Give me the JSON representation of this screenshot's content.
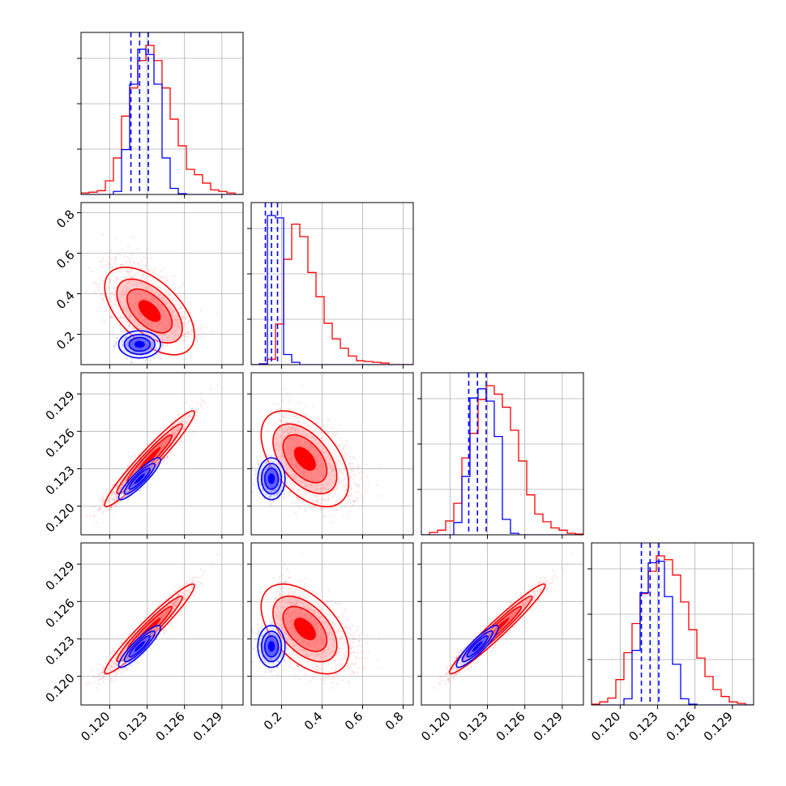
{
  "chart_data": {
    "type": "corner",
    "title": "",
    "colors": {
      "series_a": "#ff0000",
      "series_b": "#0000ff"
    },
    "grid": true,
    "parameters": [
      {
        "index": 0,
        "range": [
          0.1177,
          0.1307
        ],
        "ticks": [
          0.12,
          0.123,
          0.126,
          0.129
        ],
        "tick_labels": [
          "0.120",
          "0.123",
          "0.126",
          "0.129"
        ]
      },
      {
        "index": 1,
        "range": [
          0.05,
          0.85
        ],
        "ticks": [
          0.2,
          0.4,
          0.6,
          0.8
        ],
        "tick_labels": [
          "0.2",
          "0.4",
          "0.6",
          "0.8"
        ]
      },
      {
        "index": 2,
        "range": [
          0.1177,
          0.1307
        ],
        "ticks": [
          0.12,
          0.123,
          0.126,
          0.129
        ],
        "tick_labels": [
          "0.120",
          "0.123",
          "0.126",
          "0.129"
        ]
      },
      {
        "index": 3,
        "range": [
          0.1177,
          0.1307
        ],
        "ticks": [
          0.12,
          0.123,
          0.126,
          0.129
        ],
        "tick_labels": [
          "0.120",
          "0.123",
          "0.126",
          "0.129"
        ]
      }
    ],
    "series": [
      {
        "color": "#ff0000",
        "means": [
          0.1232,
          0.315,
          0.1238,
          0.1238
        ],
        "stds": [
          0.0015,
          0.09,
          0.0016,
          0.0015
        ],
        "correlations": {
          "1-0": -0.55,
          "2-0": 0.96,
          "2-1": -0.5,
          "3-0": 0.96,
          "3-1": -0.5,
          "3-2": 0.97
        },
        "histograms": [
          {
            "edges_start": 0.1177,
            "bin_width": 0.00065,
            "values": [
              0.2,
              0.3,
              0.5,
              1.8,
              4.8,
              10.3,
              14.0,
              17.6,
              19.6,
              17.6,
              14.0,
              9.9,
              6.4,
              3.3,
              2.6,
              1.5,
              0.6,
              0.4,
              0.2,
              0.0
            ]
          },
          {
            "edges_start": 0.05,
            "bin_width": 0.04,
            "values": [
              0.0,
              0.1,
              0.7,
              5.2,
              13.5,
              18.0,
              16.4,
              11.8,
              8.7,
              5.3,
              3.3,
              2.1,
              1.1,
              0.5,
              0.4,
              0.3,
              0.2,
              0.0,
              0.0,
              0.0
            ]
          },
          {
            "edges_start": 0.1177,
            "bin_width": 0.00065,
            "values": [
              0.0,
              0.3,
              0.6,
              1.8,
              4.1,
              10.0,
              13.2,
              17.6,
              19.4,
              18.3,
              16.6,
              13.6,
              9.6,
              5.2,
              2.7,
              1.7,
              0.9,
              0.6,
              0.2,
              0.1
            ]
          },
          {
            "edges_start": 0.1177,
            "bin_width": 0.00065,
            "values": [
              0.1,
              0.4,
              0.9,
              3.3,
              6.8,
              10.6,
              14.5,
              17.4,
              19.4,
              18.9,
              16.9,
              13.4,
              9.8,
              6.1,
              3.7,
              2.0,
              1.1,
              0.4,
              0.2,
              0.0
            ]
          }
        ]
      },
      {
        "color": "#0000ff",
        "means": [
          0.1224,
          0.15,
          0.1222,
          0.1224
        ],
        "stds": [
          0.0007,
          0.028,
          0.0007,
          0.0007
        ],
        "correlations": {
          "1-0": 0.0,
          "2-0": 0.9,
          "2-1": 0.0,
          "3-0": 0.9,
          "3-1": 0.0,
          "3-2": 0.9
        },
        "histograms": [
          {
            "edges_start": 0.1177,
            "bin_width": 0.00065,
            "values": [
              0,
              0,
              0,
              0,
              0.4,
              5.9,
              14.5,
              19.1,
              18.4,
              14.5,
              4.8,
              0.8,
              0.1,
              0,
              0,
              0,
              0,
              0,
              0,
              0
            ]
          },
          {
            "edges_start": 0.05,
            "bin_width": 0.04,
            "values": [
              0,
              0.1,
              19.1,
              18.8,
              1.3,
              0.3,
              0,
              0,
              0,
              0,
              0,
              0,
              0,
              0,
              0,
              0,
              0,
              0,
              0,
              0
            ]
          },
          {
            "edges_start": 0.1177,
            "bin_width": 0.00065,
            "values": [
              0,
              0,
              0,
              0,
              1.6,
              7.6,
              17.8,
              19.0,
              17.4,
              12.8,
              2.0,
              0.2,
              0,
              0,
              0,
              0,
              0,
              0,
              0,
              0
            ]
          },
          {
            "edges_start": 0.1177,
            "bin_width": 0.00065,
            "values": [
              0,
              0,
              0,
              0,
              0.8,
              7.1,
              14.6,
              18.5,
              18.7,
              14.1,
              5.3,
              0.8,
              0.1,
              0,
              0,
              0,
              0,
              0,
              0,
              0
            ]
          }
        ]
      }
    ],
    "quantile_lines": {
      "color": "#0000ff",
      "style": "dashed",
      "values": [
        [
          0.1217,
          0.1224,
          0.1231
        ],
        [
          0.12,
          0.15,
          0.18
        ],
        [
          0.1215,
          0.1222,
          0.1229
        ],
        [
          0.1217,
          0.1224,
          0.1231
        ]
      ]
    }
  }
}
